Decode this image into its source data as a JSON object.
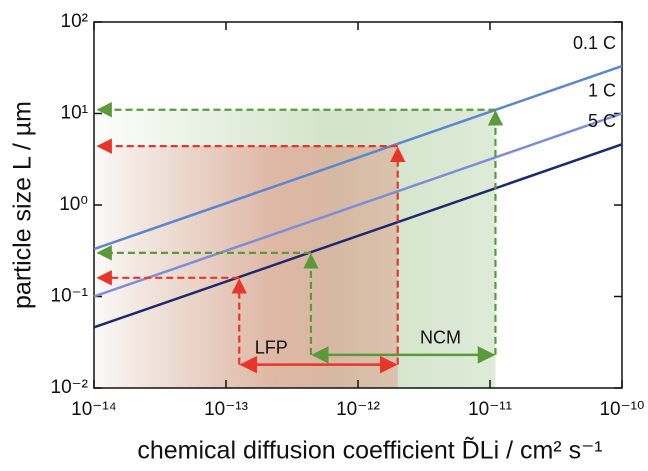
{
  "chart_data": {
    "type": "line",
    "xlabel": "chemical diffusion coefficient D̃Li / cm² s⁻¹",
    "ylabel": "particle size L / µm",
    "x": [
      1e-14,
      1e-10
    ],
    "series": [
      {
        "name": "0.1 C",
        "color": "#5b87cf",
        "values": [
          0.33,
          33
        ]
      },
      {
        "name": "1 C",
        "color": "#7c8fd6",
        "values": [
          0.1,
          10
        ]
      },
      {
        "name": "5 C",
        "color": "#1e2a6e",
        "values": [
          0.046,
          4.6
        ]
      }
    ],
    "ranges": [
      {
        "name": "NCM",
        "color": "#5a9a3a",
        "xrange": [
          4.4e-13,
          1.1e-11
        ],
        "levels": [
          0.3,
          11
        ],
        "arrow_y": 0.023
      },
      {
        "name": "LFP",
        "color": "#e8352b",
        "xrange": [
          1.26e-13,
          2e-12
        ],
        "levels": [
          0.16,
          4.4
        ],
        "arrow_y": 0.018
      }
    ],
    "xlim": [
      1e-14,
      1e-10
    ],
    "ylim": [
      0.01,
      100
    ],
    "log_x": true,
    "log_y": true,
    "xticks": [
      {
        "value": 1e-14,
        "label": "10⁻¹⁴"
      },
      {
        "value": 1e-13,
        "label": "10⁻¹³"
      },
      {
        "value": 1e-12,
        "label": "10⁻¹²"
      },
      {
        "value": 1e-11,
        "label": "10⁻¹¹"
      },
      {
        "value": 1e-10,
        "label": "10⁻¹⁰"
      }
    ],
    "yticks": [
      {
        "value": 0.01,
        "label": "10⁻²"
      },
      {
        "value": 0.1,
        "label": "10⁻¹"
      },
      {
        "value": 1,
        "label": "10⁰"
      },
      {
        "value": 10,
        "label": "10¹"
      },
      {
        "value": 100,
        "label": "10²"
      }
    ]
  }
}
